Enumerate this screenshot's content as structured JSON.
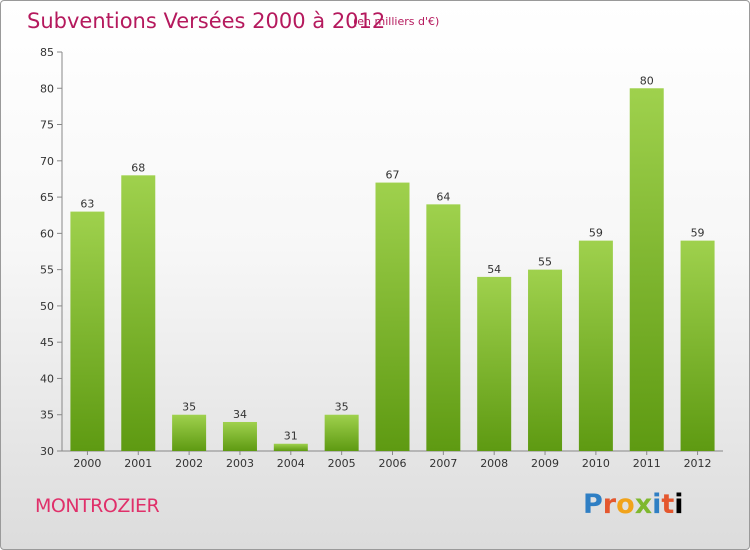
{
  "header": {
    "title": "Subventions Versées 2000 à 2012",
    "subtitle": "(en milliers d'€)"
  },
  "footer": {
    "commune": "MONTROZIER",
    "logo_letters": [
      "P",
      "r",
      "o",
      "x",
      "i",
      "t",
      "i"
    ]
  },
  "colors": {
    "title": "#b5195d",
    "bar_top": "#9fd14d",
    "bar_bottom": "#5e9a12"
  },
  "chart_data": {
    "type": "bar",
    "title": "Subventions Versées 2000 à 2012",
    "subtitle": "(en milliers d'€)",
    "xlabel": "",
    "ylabel": "",
    "categories": [
      "2000",
      "2001",
      "2002",
      "2003",
      "2004",
      "2005",
      "2006",
      "2007",
      "2008",
      "2009",
      "2010",
      "2011",
      "2012"
    ],
    "values": [
      63,
      68,
      35,
      34,
      31,
      35,
      67,
      64,
      54,
      55,
      59,
      80,
      59
    ],
    "ylim": [
      30,
      85
    ],
    "yticks": [
      30,
      35,
      40,
      45,
      50,
      55,
      60,
      65,
      70,
      75,
      80,
      85
    ],
    "grid": false,
    "legend": "none"
  }
}
